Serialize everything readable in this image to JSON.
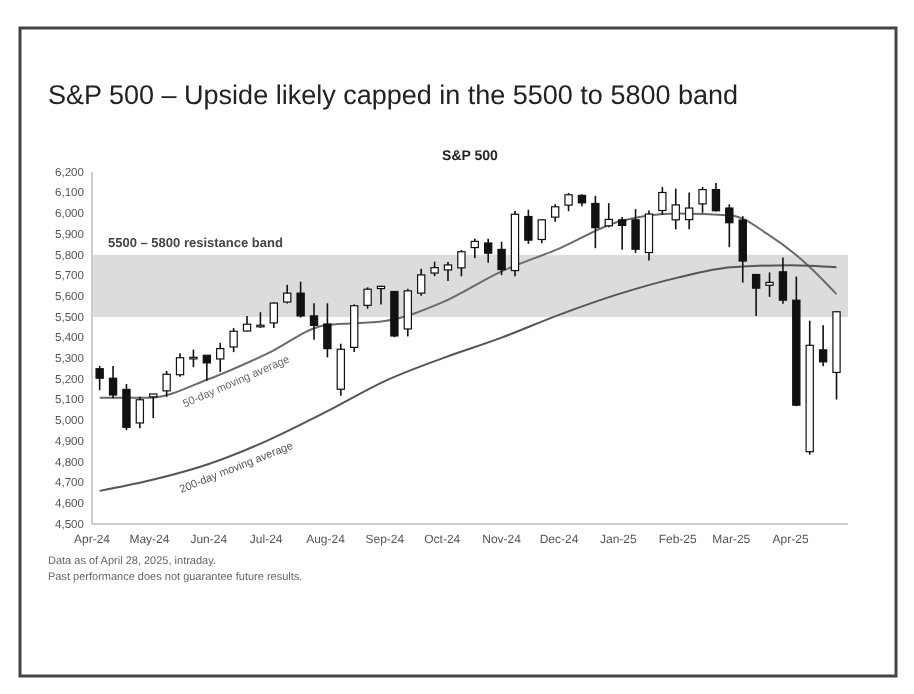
{
  "chart_data": {
    "type": "candlestick",
    "title": "S&P 500 – Upside likely capped in the 5500 to 5800 band",
    "subtitle": "S&P 500",
    "x": [
      "2024-04-05",
      "2024-04-12",
      "2024-04-19",
      "2024-04-26",
      "2024-05-03",
      "2024-05-10",
      "2024-05-17",
      "2024-05-24",
      "2024-05-31",
      "2024-06-07",
      "2024-06-14",
      "2024-06-21",
      "2024-06-28",
      "2024-07-05",
      "2024-07-12",
      "2024-07-19",
      "2024-07-26",
      "2024-08-02",
      "2024-08-09",
      "2024-08-16",
      "2024-08-23",
      "2024-08-30",
      "2024-09-06",
      "2024-09-13",
      "2024-09-20",
      "2024-09-27",
      "2024-10-04",
      "2024-10-11",
      "2024-10-18",
      "2024-10-25",
      "2024-11-01",
      "2024-11-08",
      "2024-11-15",
      "2024-11-22",
      "2024-11-29",
      "2024-12-06",
      "2024-12-13",
      "2024-12-20",
      "2024-12-27",
      "2025-01-03",
      "2025-01-10",
      "2025-01-17",
      "2025-01-24",
      "2025-01-31",
      "2025-02-07",
      "2025-02-14",
      "2025-02-21",
      "2025-02-28",
      "2025-03-07",
      "2025-03-14",
      "2025-03-21",
      "2025-03-28",
      "2025-04-04",
      "2025-04-11",
      "2025-04-18",
      "2025-04-25"
    ],
    "ohlc": [
      [
        5250,
        5264,
        5146,
        5204
      ],
      [
        5204,
        5263,
        5107,
        5123
      ],
      [
        5150,
        5176,
        4953,
        4967
      ],
      [
        4988,
        5114,
        4963,
        5100
      ],
      [
        5114,
        5128,
        5011,
        5128
      ],
      [
        5143,
        5239,
        5114,
        5223
      ],
      [
        5221,
        5325,
        5211,
        5303
      ],
      [
        5303,
        5342,
        5257,
        5305
      ],
      [
        5315,
        5315,
        5192,
        5278
      ],
      [
        5297,
        5375,
        5234,
        5347
      ],
      [
        5355,
        5447,
        5330,
        5431
      ],
      [
        5432,
        5505,
        5431,
        5465
      ],
      [
        5460,
        5523,
        5447,
        5460
      ],
      [
        5471,
        5570,
        5446,
        5567
      ],
      [
        5572,
        5655,
        5565,
        5615
      ],
      [
        5615,
        5670,
        5497,
        5505
      ],
      [
        5505,
        5566,
        5390,
        5459
      ],
      [
        5466,
        5566,
        5305,
        5347
      ],
      [
        5151,
        5370,
        5119,
        5344
      ],
      [
        5353,
        5561,
        5331,
        5554
      ],
      [
        5556,
        5643,
        5540,
        5634
      ],
      [
        5637,
        5651,
        5560,
        5648
      ],
      [
        5623,
        5623,
        5402,
        5408
      ],
      [
        5442,
        5636,
        5406,
        5626
      ],
      [
        5615,
        5733,
        5602,
        5703
      ],
      [
        5712,
        5767,
        5697,
        5738
      ],
      [
        5727,
        5765,
        5674,
        5751
      ],
      [
        5737,
        5823,
        5696,
        5815
      ],
      [
        5835,
        5878,
        5784,
        5865
      ],
      [
        5857,
        5878,
        5762,
        5808
      ],
      [
        5826,
        5863,
        5702,
        5729
      ],
      [
        5724,
        6012,
        5696,
        5996
      ],
      [
        5985,
        6018,
        5853,
        5871
      ],
      [
        5874,
        5972,
        5856,
        5969
      ],
      [
        5982,
        6044,
        5960,
        6032
      ],
      [
        6040,
        6099,
        6011,
        6090
      ],
      [
        6087,
        6093,
        6034,
        6051
      ],
      [
        6048,
        6085,
        5832,
        5931
      ],
      [
        5940,
        6050,
        5933,
        5971
      ],
      [
        5969,
        5983,
        5824,
        5942
      ],
      [
        5969,
        6021,
        5809,
        5827
      ],
      [
        5811,
        6014,
        5773,
        5997
      ],
      [
        6014,
        6128,
        5993,
        6101
      ],
      [
        5969,
        6120,
        5923,
        6041
      ],
      [
        5970,
        6101,
        5923,
        6026
      ],
      [
        6046,
        6128,
        6003,
        6115
      ],
      [
        6115,
        6147,
        6009,
        6013
      ],
      [
        6026,
        6044,
        5837,
        5955
      ],
      [
        5968,
        5987,
        5666,
        5770
      ],
      [
        5705,
        5705,
        5505,
        5639
      ],
      [
        5653,
        5715,
        5597,
        5667
      ],
      [
        5718,
        5787,
        5564,
        5581
      ],
      [
        5581,
        5695,
        5069,
        5074
      ],
      [
        4849,
        5482,
        4835,
        5363
      ],
      [
        5341,
        5460,
        5262,
        5283
      ],
      [
        5232,
        5528,
        5101,
        5525
      ]
    ],
    "series": [
      {
        "type": "line",
        "name": "50-day moving average",
        "color": "#6a6a6a",
        "x": [
          "2024-04-05",
          "2024-05-01",
          "2024-06-01",
          "2024-07-01",
          "2024-08-01",
          "2024-09-01",
          "2024-10-01",
          "2024-11-01",
          "2024-12-01",
          "2025-01-01",
          "2025-02-01",
          "2025-03-01",
          "2025-03-20",
          "2025-04-10",
          "2025-04-25"
        ],
        "values": [
          5110,
          5110,
          5200,
          5320,
          5460,
          5480,
          5570,
          5720,
          5830,
          5960,
          6000,
          5990,
          5900,
          5750,
          5610
        ]
      },
      {
        "type": "line",
        "name": "200-day moving average",
        "color": "#555555",
        "x": [
          "2024-04-05",
          "2024-05-01",
          "2024-06-01",
          "2024-07-01",
          "2024-08-01",
          "2024-09-01",
          "2024-10-01",
          "2024-11-01",
          "2024-12-01",
          "2025-01-01",
          "2025-02-01",
          "2025-03-01",
          "2025-04-01",
          "2025-04-25"
        ],
        "values": [
          4660,
          4710,
          4790,
          4900,
          5040,
          5190,
          5300,
          5400,
          5510,
          5610,
          5690,
          5740,
          5750,
          5740
        ]
      }
    ],
    "xlim": [
      "2024-04-01",
      "2025-05-01"
    ],
    "xticks": [
      {
        "value": "2024-04-01",
        "label": "Apr-24"
      },
      {
        "value": "2024-05-01",
        "label": "May-24"
      },
      {
        "value": "2024-06-01",
        "label": "Jun-24"
      },
      {
        "value": "2024-07-01",
        "label": "Jul-24"
      },
      {
        "value": "2024-08-01",
        "label": "Aug-24"
      },
      {
        "value": "2024-09-01",
        "label": "Sep-24"
      },
      {
        "value": "2024-10-01",
        "label": "Oct-24"
      },
      {
        "value": "2024-11-01",
        "label": "Nov-24"
      },
      {
        "value": "2024-12-01",
        "label": "Dec-24"
      },
      {
        "value": "2025-01-01",
        "label": "Jan-25"
      },
      {
        "value": "2025-02-01",
        "label": "Feb-25"
      },
      {
        "value": "2025-03-01",
        "label": "Mar-25"
      },
      {
        "value": "2025-04-01",
        "label": "Apr-25"
      }
    ],
    "ylim": [
      4500,
      6200
    ],
    "yticks": [
      {
        "value": 4500,
        "label": "4,500"
      },
      {
        "value": 4600,
        "label": "4,600"
      },
      {
        "value": 4700,
        "label": "4,700"
      },
      {
        "value": 4800,
        "label": "4,800"
      },
      {
        "value": 4900,
        "label": "4,900"
      },
      {
        "value": 5000,
        "label": "5,000"
      },
      {
        "value": 5100,
        "label": "5,100"
      },
      {
        "value": 5200,
        "label": "5,200"
      },
      {
        "value": 5300,
        "label": "5,300"
      },
      {
        "value": 5400,
        "label": "5,400"
      },
      {
        "value": 5500,
        "label": "5,500"
      },
      {
        "value": 5600,
        "label": "5,600"
      },
      {
        "value": 5700,
        "label": "5,700"
      },
      {
        "value": 5800,
        "label": "5,800"
      },
      {
        "value": 5900,
        "label": "5,900"
      },
      {
        "value": 6000,
        "label": "6,000"
      },
      {
        "value": 6100,
        "label": "6,100"
      },
      {
        "value": 6200,
        "label": "6,200"
      }
    ],
    "bands": [
      {
        "axis": "y",
        "from": 5500,
        "to": 5800,
        "label": "5500 – 5800 resistance band",
        "color": "#dcdcdc"
      }
    ],
    "annotations": [
      "Data as of April 28, 2025, intraday.",
      "Past performance does not guarantee future results."
    ]
  }
}
